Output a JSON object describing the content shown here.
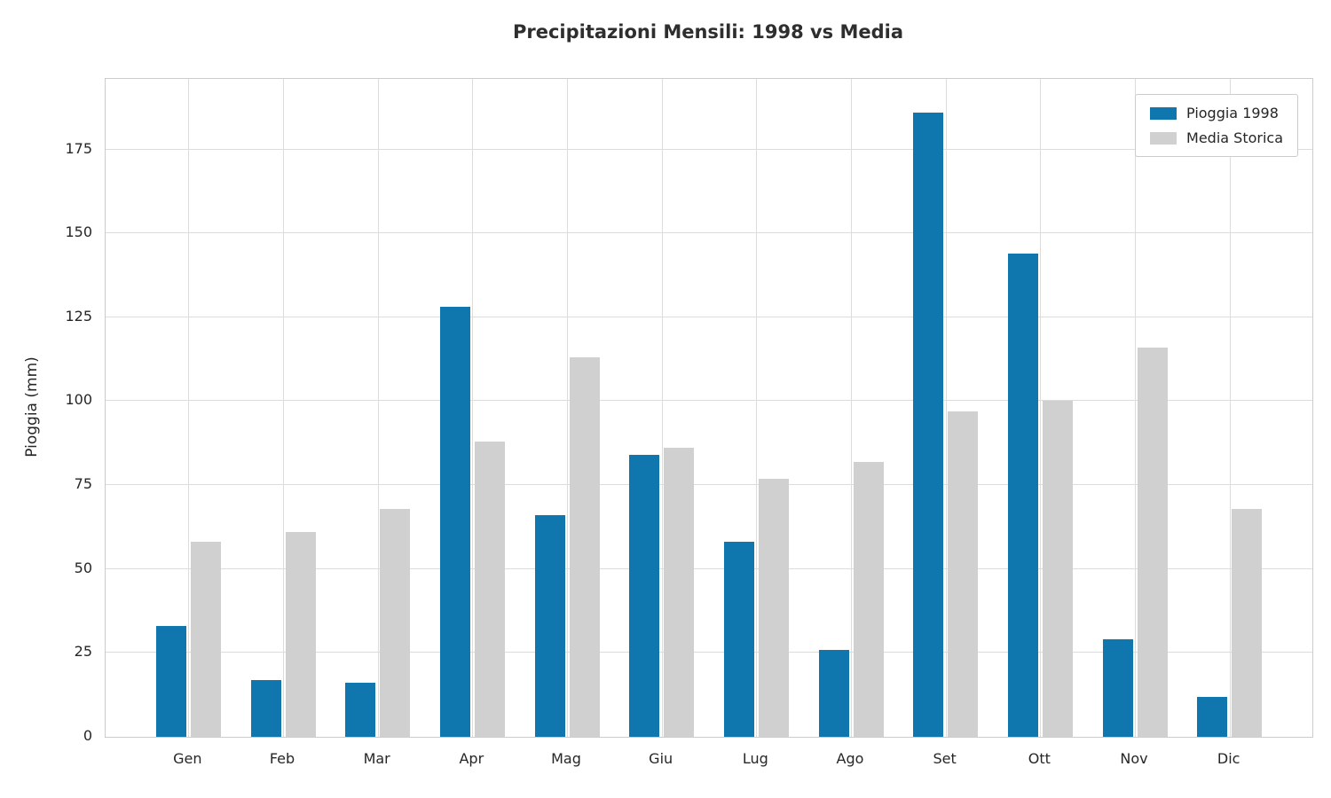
{
  "chart_data": {
    "type": "bar",
    "title": "Precipitazioni Mensili: 1998 vs Media",
    "xlabel": "",
    "ylabel": "Pioggia (mm)",
    "categories": [
      "Gen",
      "Feb",
      "Mar",
      "Apr",
      "Mag",
      "Giu",
      "Lug",
      "Ago",
      "Set",
      "Ott",
      "Nov",
      "Dic"
    ],
    "series": [
      {
        "name": "Pioggia 1998",
        "color": "#0f77ad",
        "values": [
          33,
          17,
          16,
          128,
          66,
          84,
          58,
          26,
          186,
          144,
          29,
          12
        ]
      },
      {
        "name": "Media Storica",
        "color": "#d0d0d0",
        "values": [
          58,
          61,
          68,
          88,
          113,
          86,
          77,
          82,
          97,
          100,
          116,
          68
        ]
      }
    ],
    "ylim": [
      0,
      196
    ],
    "yticks": [
      0,
      25,
      50,
      75,
      100,
      125,
      150,
      175
    ],
    "grid": true,
    "legend_position": "upper right"
  }
}
